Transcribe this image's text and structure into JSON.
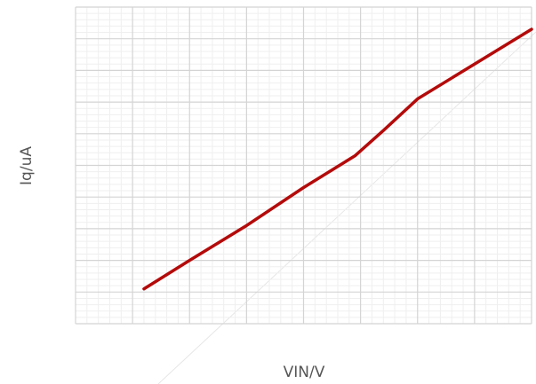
{
  "chart_data": {
    "type": "line",
    "xlabel": "VIN/V",
    "ylabel": "Iq/uA",
    "x": [
      1.2,
      2.0,
      3.0,
      4.0,
      4.9,
      5.4,
      6.0,
      7.0,
      8.0
    ],
    "series": [
      {
        "color": "#b40a0a",
        "values": [
          1.1,
          2.0,
          3.1,
          4.3,
          5.3,
          6.1,
          7.1,
          8.2,
          9.3
        ]
      }
    ],
    "xlim": [
      0,
      8
    ],
    "ylim": [
      0,
      10
    ],
    "xticks": [
      0,
      1,
      2,
      3,
      4,
      5,
      6,
      7,
      8
    ],
    "yticks": [
      0,
      1,
      2,
      3,
      4,
      5,
      6,
      7,
      8,
      9,
      10
    ],
    "grid": true
  }
}
